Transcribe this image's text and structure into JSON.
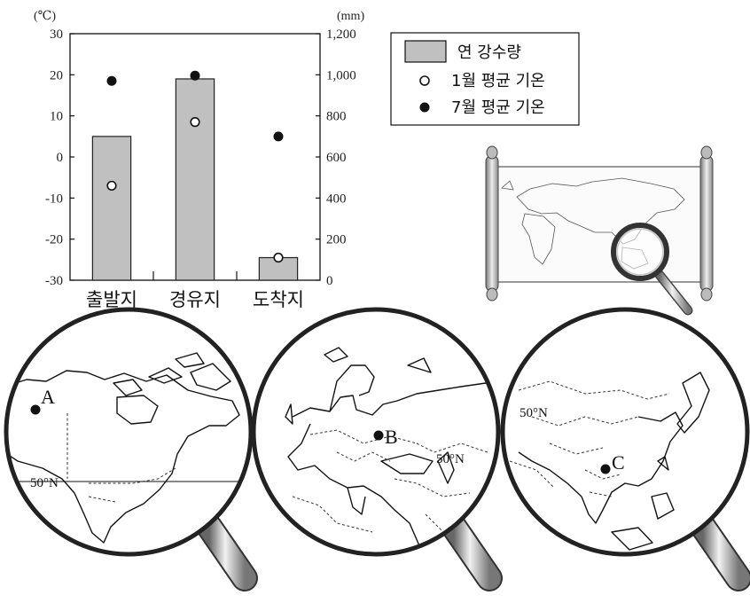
{
  "chart_data": {
    "type": "bar",
    "categories": [
      "출발지",
      "경유지",
      "도착지"
    ],
    "left_axis": {
      "unit": "(℃)",
      "range": [
        -30,
        30
      ],
      "ticks": [
        30,
        20,
        10,
        0,
        -10,
        -20,
        -30
      ],
      "tick_labels": [
        "30",
        "20",
        "10",
        "0",
        "-10",
        "-20",
        "-30"
      ]
    },
    "right_axis": {
      "unit": "(mm)",
      "range": [
        0,
        1200
      ],
      "ticks": [
        1200,
        1000,
        800,
        600,
        400,
        200,
        0
      ],
      "tick_labels": [
        "1,200",
        "1,000",
        "800",
        "600",
        "400",
        "200",
        "0"
      ]
    },
    "series": [
      {
        "name": "연 강수량",
        "kind": "bar",
        "axis": "right",
        "values": [
          700,
          980,
          110
        ],
        "color": "#c0c0c0"
      },
      {
        "name": "1월 평균 기온",
        "kind": "point",
        "marker": "open-circle",
        "axis": "left",
        "values": [
          -7,
          8.5,
          -24.5
        ]
      },
      {
        "name": "7월 평균 기온",
        "kind": "point",
        "marker": "filled-circle",
        "axis": "left",
        "values": [
          18.5,
          19.8,
          5
        ]
      }
    ],
    "legend": [
      "연 강수량",
      "1월 평균 기온",
      "7월 평균 기온"
    ],
    "legend_placement": "top-right"
  },
  "maps": {
    "north_america": {
      "point_label": "A",
      "latitude_label": "50°N"
    },
    "europe": {
      "point_label": "B",
      "latitude_label": "50°N"
    },
    "asia": {
      "point_label": "C",
      "latitude_label": "50°N"
    }
  }
}
